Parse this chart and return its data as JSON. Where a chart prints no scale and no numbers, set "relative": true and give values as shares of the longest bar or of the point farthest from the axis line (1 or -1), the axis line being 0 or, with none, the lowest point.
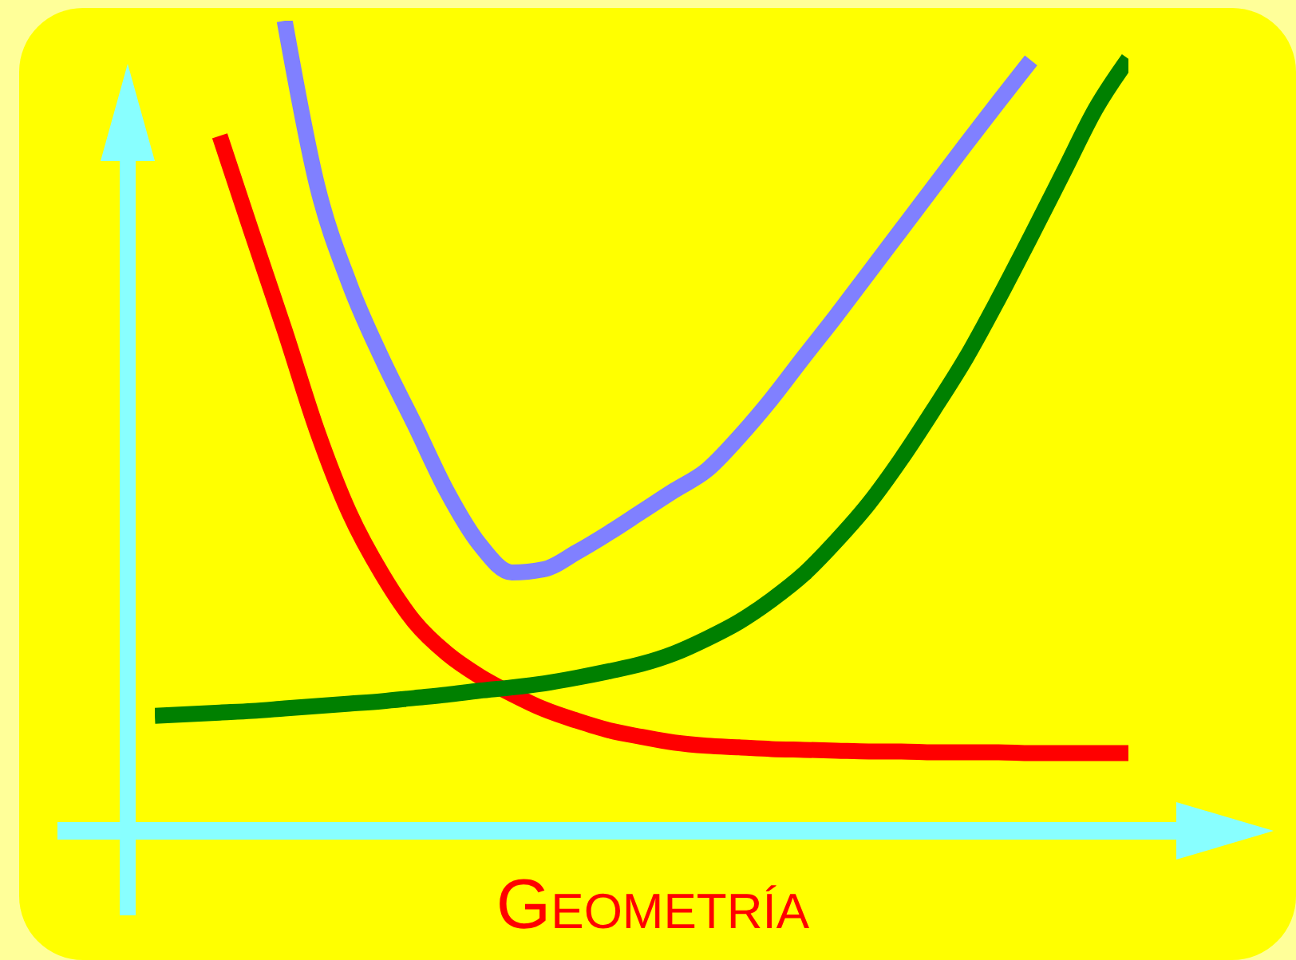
{
  "chart_data": {
    "type": "line",
    "relative": true,
    "xlabel": "Geometría",
    "categories": [
      null,
      null,
      null,
      null,
      null,
      null,
      null,
      null,
      null,
      null,
      null,
      null,
      null,
      null,
      null,
      null,
      null,
      null,
      null,
      null,
      null,
      null,
      null,
      null,
      null,
      null,
      null,
      null,
      null,
      null,
      null
    ],
    "series": [
      {
        "color": "#ff0000",
        "values": [
          null,
          null,
          0.858,
          0.737,
          0.618,
          0.494,
          0.392,
          0.317,
          0.258,
          0.219,
          0.191,
          0.169,
          0.15,
          0.136,
          0.124,
          0.116,
          0.109,
          0.105,
          0.103,
          0.101,
          0.1,
          0.099,
          0.098,
          0.098,
          0.097,
          0.097,
          0.097,
          0.096,
          0.096,
          0.096,
          0.096
        ]
      },
      {
        "color": "#8080ff",
        "values": [
          null,
          null,
          null,
          null,
          1.0,
          0.797,
          0.675,
          0.583,
          0.502,
          0.419,
          0.354,
          0.319,
          0.323,
          0.344,
          0.368,
          0.394,
          0.42,
          0.445,
          0.486,
          0.533,
          0.585,
          0.636,
          0.689,
          0.742,
          0.795,
          0.848,
          0.9,
          0.951,
          null,
          null,
          null
        ]
      },
      {
        "color": "#008000",
        "values": [
          0.142,
          0.144,
          0.146,
          0.148,
          0.151,
          0.154,
          0.157,
          0.16,
          0.164,
          0.168,
          0.173,
          0.177,
          0.182,
          0.189,
          0.197,
          0.206,
          0.219,
          0.237,
          0.258,
          0.285,
          0.317,
          0.358,
          0.404,
          0.459,
          0.52,
          0.584,
          0.657,
          0.734,
          0.813,
          0.892,
          0.953
        ]
      }
    ]
  }
}
